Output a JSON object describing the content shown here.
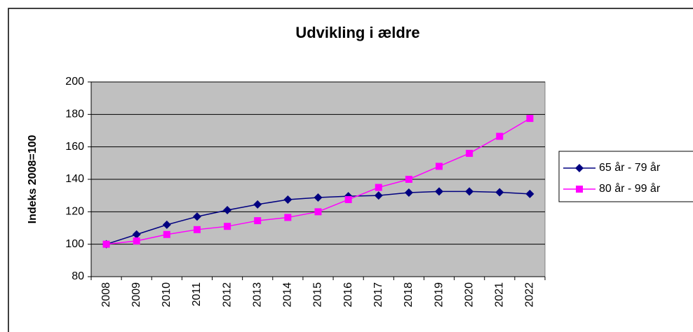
{
  "chart_data": {
    "type": "line",
    "title": "Udvikling i ældre",
    "y_label": "Indeks 2008=100",
    "categories": [
      "2008",
      "2009",
      "2010",
      "2011",
      "2012",
      "2013",
      "2014",
      "2015",
      "2016",
      "2017",
      "2018",
      "2019",
      "2020",
      "2021",
      "2022"
    ],
    "series": [
      {
        "name": "65 år - 79 år",
        "color": "#000080",
        "marker": "diamond",
        "values": [
          100,
          106,
          112,
          117,
          121,
          124.5,
          127.5,
          128.8,
          129.6,
          130,
          131.8,
          132.5,
          132.5,
          132,
          131
        ]
      },
      {
        "name": "80 år - 99 år",
        "color": "#ff00ff",
        "marker": "square",
        "values": [
          100,
          102,
          106,
          109,
          111,
          114.5,
          116.5,
          120,
          127.5,
          135,
          140,
          148,
          156,
          166.5,
          177.5
        ]
      }
    ],
    "ylim": [
      80,
      200
    ],
    "yticks": [
      80,
      100,
      120,
      140,
      160,
      180,
      200
    ],
    "grid": true,
    "legend": "right"
  }
}
